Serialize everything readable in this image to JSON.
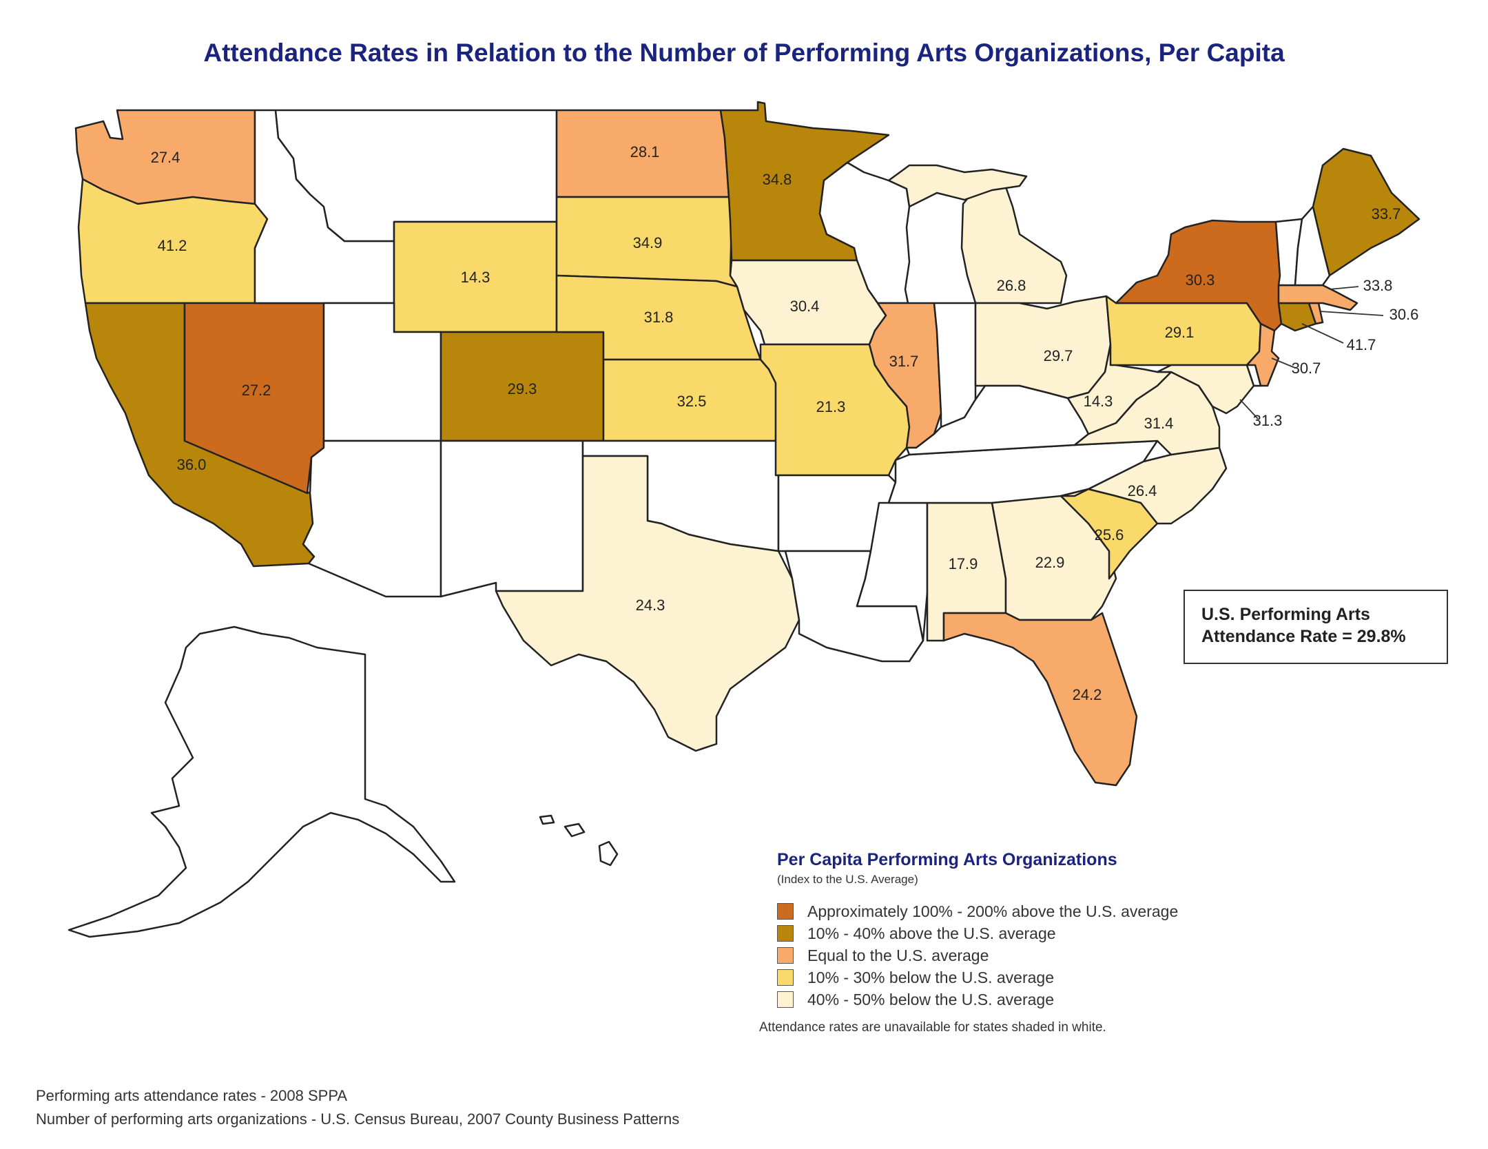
{
  "title": "Attendance Rates in Relation to the Number of Performing Arts Organizations, Per Capita",
  "colors": {
    "cat1": "#cc6a1e",
    "cat2": "#b8860b",
    "cat3": "#f7aa6a",
    "cat4": "#fad96b",
    "cat5": "#fdf2d2",
    "none": "#ffffff"
  },
  "national_box": {
    "line1": "U.S. Performing Arts",
    "line2": "Attendance Rate = 29.8%"
  },
  "legend": {
    "title": "Per Capita Performing Arts Organizations",
    "subtitle": "(Index to the U.S. Average)",
    "items": [
      {
        "label": "Approximately 100% - 200% above the U.S. average",
        "color": "#cc6a1e"
      },
      {
        "label": "10% - 40% above the U.S. average",
        "color": "#b8860b"
      },
      {
        "label": "Equal to the U.S. average",
        "color": "#f7aa6a"
      },
      {
        "label": "10% - 30% below the U.S. average",
        "color": "#fad96b"
      },
      {
        "label": "40% - 50% below the U.S. average",
        "color": "#fdf2d2"
      }
    ],
    "note": "Attendance rates are unavailable for states shaded in white."
  },
  "footer": {
    "line1": "Performing arts attendance rates - 2008 SPPA",
    "line2": "Number of performing arts organizations - U.S. Census Bureau, 2007 County Business Patterns"
  },
  "states": {
    "WA": {
      "value": "27.4",
      "category": "cat3"
    },
    "OR": {
      "value": "41.2",
      "category": "cat4"
    },
    "CA": {
      "value": "36.0",
      "category": "cat2"
    },
    "NV": {
      "value": "27.2",
      "category": "cat1"
    },
    "WY": {
      "value": "14.3",
      "category": "cat4"
    },
    "CO": {
      "value": "29.3",
      "category": "cat2"
    },
    "ND": {
      "value": "28.1",
      "category": "cat3"
    },
    "SD": {
      "value": "34.9",
      "category": "cat4"
    },
    "NE": {
      "value": "31.8",
      "category": "cat4"
    },
    "KS": {
      "value": "32.5",
      "category": "cat4"
    },
    "TX": {
      "value": "24.3",
      "category": "cat5"
    },
    "MN": {
      "value": "34.8",
      "category": "cat2"
    },
    "IA": {
      "value": "30.4",
      "category": "cat5"
    },
    "MO": {
      "value": "21.3",
      "category": "cat4"
    },
    "IL": {
      "value": "31.7",
      "category": "cat3"
    },
    "MI": {
      "value": "26.8",
      "category": "cat5"
    },
    "OH": {
      "value": "29.7",
      "category": "cat5"
    },
    "WV": {
      "value": "14.3",
      "category": "cat5"
    },
    "VA": {
      "value": "31.4",
      "category": "cat5"
    },
    "NC": {
      "value": "26.4",
      "category": "cat5"
    },
    "SC": {
      "value": "25.6",
      "category": "cat4"
    },
    "GA": {
      "value": "22.9",
      "category": "cat5"
    },
    "AL": {
      "value": "17.9",
      "category": "cat5"
    },
    "FL": {
      "value": "24.2",
      "category": "cat3"
    },
    "PA": {
      "value": "29.1",
      "category": "cat4"
    },
    "NY": {
      "value": "30.3",
      "category": "cat1"
    },
    "ME": {
      "value": "33.7",
      "category": "cat2"
    },
    "MA": {
      "value": "33.8",
      "category": "cat3"
    },
    "RI": {
      "value": "30.6",
      "category": "cat3"
    },
    "CT": {
      "value": "41.7",
      "category": "cat2"
    },
    "NJ": {
      "value": "30.7",
      "category": "cat3"
    },
    "MD": {
      "value": "31.3",
      "category": "cat5"
    },
    "MT": {
      "value": "",
      "category": "none"
    },
    "ID": {
      "value": "",
      "category": "none"
    },
    "UT": {
      "value": "",
      "category": "none"
    },
    "AZ": {
      "value": "",
      "category": "none"
    },
    "NM": {
      "value": "",
      "category": "none"
    },
    "OK": {
      "value": "",
      "category": "none"
    },
    "AR": {
      "value": "",
      "category": "none"
    },
    "LA": {
      "value": "",
      "category": "none"
    },
    "MS": {
      "value": "",
      "category": "none"
    },
    "TN": {
      "value": "",
      "category": "none"
    },
    "KY": {
      "value": "",
      "category": "none"
    },
    "IN": {
      "value": "",
      "category": "none"
    },
    "WI": {
      "value": "",
      "category": "none"
    },
    "VT": {
      "value": "",
      "category": "none"
    },
    "NH": {
      "value": "",
      "category": "none"
    },
    "DE": {
      "value": "",
      "category": "none"
    },
    "AK": {
      "value": "",
      "category": "none"
    },
    "HI": {
      "value": "",
      "category": "none"
    }
  }
}
